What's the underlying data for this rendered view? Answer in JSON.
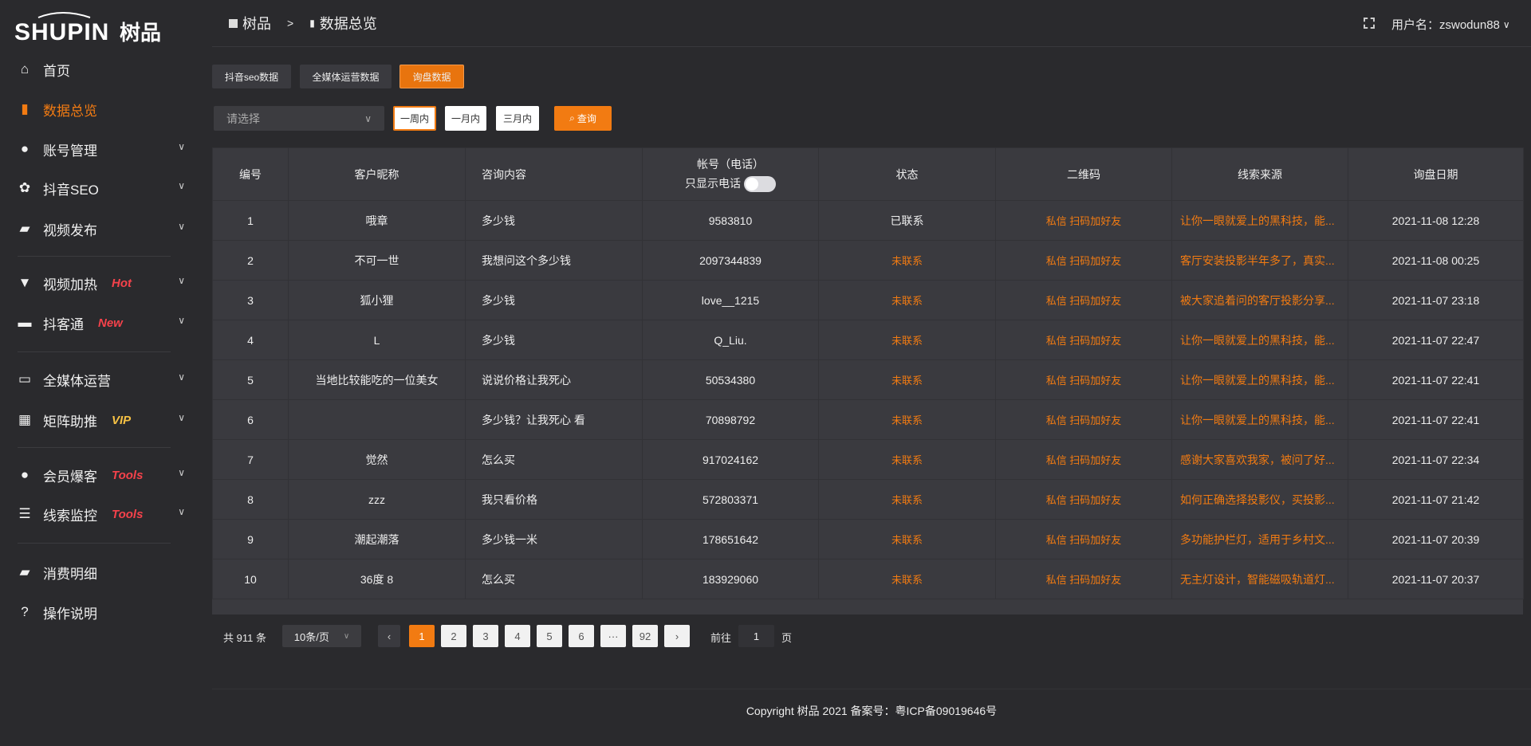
{
  "brand": {
    "logo_text": "SHUPIN 树品"
  },
  "header": {
    "crumbs": [
      "树品",
      "数据总览"
    ],
    "separator": ">",
    "user_label": "用户名：zswodun88"
  },
  "sidebar": {
    "items": [
      {
        "label": "首页",
        "icon": "home-icon"
      },
      {
        "label": "数据总览",
        "icon": "bar-chart-icon",
        "active": true
      },
      {
        "label": "账号管理",
        "icon": "user-icon",
        "chevron": true
      },
      {
        "label": "抖音SEO",
        "icon": "gear-icon",
        "chevron": true
      },
      {
        "label": "视频发布",
        "icon": "camera-icon",
        "chevron": true
      },
      {
        "label": "视频加热",
        "icon": "heat-icon",
        "badge": "Hot",
        "chevron": true
      },
      {
        "label": "抖客通",
        "icon": "chat-icon",
        "badge": "New",
        "chevron": true
      },
      {
        "label": "全媒体运营",
        "icon": "monitor-icon",
        "chevron": true
      },
      {
        "label": "矩阵助推",
        "icon": "grid-icon",
        "badge": "VIP",
        "chevron": true
      },
      {
        "label": "会员爆客",
        "icon": "user-icon",
        "badge": "Tools",
        "chevron": true
      },
      {
        "label": "线索监控",
        "icon": "sliders-icon",
        "badge": "Tools",
        "chevron": true
      },
      {
        "label": "消费明细",
        "icon": "wallet-icon"
      },
      {
        "label": "操作说明",
        "icon": "help-icon"
      }
    ]
  },
  "colors": {
    "accent": "#f27b12",
    "badge_red": "#f5424b",
    "badge_vip": "#f7c244"
  },
  "tabs": [
    {
      "label": "抖音seo数据"
    },
    {
      "label": "全媒体运营数据"
    },
    {
      "label": "询盘数据",
      "active": true
    }
  ],
  "filters": {
    "select_placeholder": "请选择",
    "ranges": [
      "一周内",
      "一月内",
      "三月内"
    ],
    "query_label": "查询"
  },
  "table": {
    "headers": [
      "编号",
      "客户昵称",
      "咨询内容",
      "帐号（电话）",
      "状态",
      "二维码",
      "线索来源",
      "询盘日期"
    ],
    "phone_toggle_label": "只显示电话",
    "phone_toggle_on": false,
    "rows": [
      [
        "1",
        "哦章",
        "多少钱",
        "9583810",
        "已联系",
        "私信 扫码加好友",
        "让你一眼就爱上的黑科技，能...",
        "2021-11-08 12:28"
      ],
      [
        "2",
        "不可一世",
        "我想问这个多少钱",
        "2097344839",
        "未联系",
        "私信 扫码加好友",
        "客厅安装投影半年多了，真实...",
        "2021-11-08 00:25"
      ],
      [
        "3",
        "狐小狸",
        "多少钱",
        "love__1215",
        "未联系",
        "私信 扫码加好友",
        "被大家追着问的客厅投影分享...",
        "2021-11-07 23:18"
      ],
      [
        "4",
        "L",
        "多少钱",
        "Q_Liu.",
        "未联系",
        "私信 扫码加好友",
        "让你一眼就爱上的黑科技，能...",
        "2021-11-07 22:47"
      ],
      [
        "5",
        "当地比较能吃的一位美女",
        "说说价格让我死心",
        "50534380",
        "未联系",
        "私信 扫码加好友",
        "让你一眼就爱上的黑科技，能...",
        "2021-11-07 22:41"
      ],
      [
        "6",
        "",
        "多少钱？让我死心 看",
        "70898792",
        "未联系",
        "私信 扫码加好友",
        "让你一眼就爱上的黑科技，能...",
        "2021-11-07 22:41"
      ],
      [
        "7",
        "觉然",
        "怎么买",
        "917024162",
        "未联系",
        "私信 扫码加好友",
        "感谢大家喜欢我家，被问了好...",
        "2021-11-07 22:34"
      ],
      [
        "8",
        "zzz",
        "我只看价格",
        "572803371",
        "未联系",
        "私信 扫码加好友",
        "如何正确选择投影仪，买投影...",
        "2021-11-07 21:42"
      ],
      [
        "9",
        "潮起潮落",
        "多少钱一米",
        "178651642",
        "未联系",
        "私信 扫码加好友",
        "多功能护栏灯，适用于乡村文...",
        "2021-11-07 20:39"
      ],
      [
        "10",
        "36度 8",
        "怎么买",
        "183929060",
        "未联系",
        "私信 扫码加好友",
        "无主灯设计，智能磁吸轨道灯...",
        "2021-11-07 20:37"
      ]
    ]
  },
  "pagination": {
    "total_label": "共 911 条",
    "page_size": "10条/页",
    "pages": [
      "1",
      "2",
      "3",
      "4",
      "5",
      "6",
      "···",
      "92"
    ],
    "current": "1",
    "goto_prefix": "前往",
    "goto_value": "1",
    "goto_suffix": "页"
  },
  "footer": {
    "copyright": "Copyright 树品 2021 备案号：粤ICP备09019646号"
  }
}
